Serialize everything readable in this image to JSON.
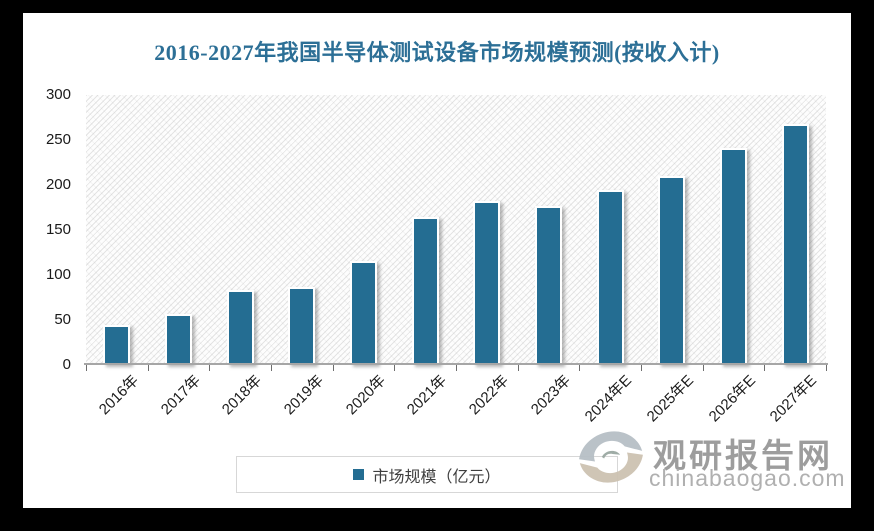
{
  "chart_data": {
    "type": "bar",
    "title": "2016-2027年我国半导体测试设备市场规模预测(按收入计)",
    "categories": [
      "2016年",
      "2017年",
      "2018年",
      "2019年",
      "2020年",
      "2021年",
      "2022年",
      "2023年",
      "2024年E",
      "2025年E",
      "2026年E",
      "2027年E"
    ],
    "series": [
      {
        "name": "市场规模（亿元）",
        "values": [
          45,
          57,
          83,
          87,
          116,
          164,
          182,
          177,
          194,
          210,
          241,
          268
        ]
      }
    ],
    "xlabel": "",
    "ylabel": "",
    "ylim": [
      0,
      300
    ],
    "yticks": [
      0,
      50,
      100,
      150,
      200,
      250,
      300
    ],
    "grid": false,
    "legend_position": "bottom",
    "bar_color": "#246d92"
  },
  "legend": {
    "label": "市场规模（亿元）"
  },
  "watermark": {
    "site_name": "观研报告网",
    "site_url": "chinabaogao.com"
  },
  "colors": {
    "bar": "#246d92",
    "title": "#2c6f96",
    "axis_line": "#a6a6a6",
    "axis_text": "#1a1a1a",
    "watermark_name": "#9d9d9d",
    "watermark_url": "#b0b0b0"
  }
}
